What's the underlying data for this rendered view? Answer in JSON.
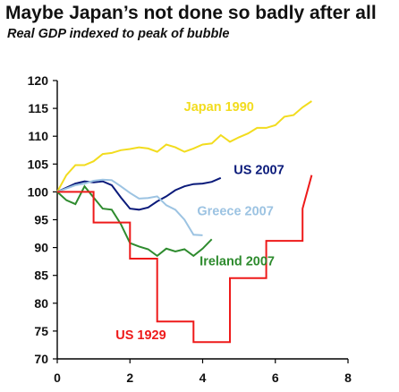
{
  "title": "Maybe Japan’s not done so badly after all",
  "subtitle": "Real GDP indexed to peak of bubble",
  "chart_data": {
    "type": "line",
    "title": "Maybe Japan’s not done so badly after all",
    "subtitle": "Real GDP indexed to peak of bubble",
    "xlabel": "",
    "ylabel": "",
    "xlim": [
      0,
      8
    ],
    "ylim": [
      70,
      120
    ],
    "xticks": [
      0,
      2,
      4,
      6,
      8
    ],
    "yticks": [
      70,
      75,
      80,
      85,
      90,
      95,
      100,
      105,
      110,
      115,
      120
    ],
    "grid": false,
    "series": [
      {
        "name": "Japan 1990",
        "color": "#f2dc1e",
        "step": false,
        "points": [
          [
            0,
            100
          ],
          [
            0.25,
            103
          ],
          [
            0.5,
            104.8
          ],
          [
            0.75,
            104.8
          ],
          [
            1.0,
            105.5
          ],
          [
            1.25,
            106.8
          ],
          [
            1.5,
            107
          ],
          [
            1.75,
            107.5
          ],
          [
            2.0,
            107.7
          ],
          [
            2.25,
            108
          ],
          [
            2.5,
            107.8
          ],
          [
            2.75,
            107.2
          ],
          [
            3.0,
            108.5
          ],
          [
            3.25,
            108
          ],
          [
            3.5,
            107.2
          ],
          [
            3.75,
            107.8
          ],
          [
            4.0,
            108.5
          ],
          [
            4.25,
            108.7
          ],
          [
            4.5,
            110.2
          ],
          [
            4.75,
            109
          ],
          [
            5.0,
            109.8
          ],
          [
            5.25,
            110.5
          ],
          [
            5.5,
            111.5
          ],
          [
            5.75,
            111.5
          ],
          [
            6.0,
            112
          ],
          [
            6.25,
            113.5
          ],
          [
            6.5,
            113.8
          ],
          [
            6.75,
            115.2
          ],
          [
            7.0,
            116.3
          ]
        ]
      },
      {
        "name": "US 2007",
        "color": "#0a1a7a",
        "step": false,
        "points": [
          [
            0,
            100
          ],
          [
            0.5,
            101.5
          ],
          [
            0.75,
            101.9
          ],
          [
            1.0,
            101.7
          ],
          [
            1.25,
            101.9
          ],
          [
            1.5,
            101.2
          ],
          [
            1.75,
            99
          ],
          [
            2.0,
            97
          ],
          [
            2.25,
            96.8
          ],
          [
            2.5,
            97.2
          ],
          [
            2.75,
            98.3
          ],
          [
            3.0,
            99.2
          ],
          [
            3.25,
            100.3
          ],
          [
            3.5,
            101
          ],
          [
            3.75,
            101.4
          ],
          [
            4.0,
            101.5
          ],
          [
            4.25,
            101.8
          ],
          [
            4.5,
            102.5
          ]
        ]
      },
      {
        "name": "Greece 2007",
        "color": "#9cc3e2",
        "step": false,
        "points": [
          [
            0,
            100
          ],
          [
            0.5,
            101.2
          ],
          [
            0.75,
            101.5
          ],
          [
            1.0,
            102
          ],
          [
            1.25,
            102.2
          ],
          [
            1.5,
            102.1
          ],
          [
            1.75,
            101
          ],
          [
            2.0,
            99.8
          ],
          [
            2.25,
            98.8
          ],
          [
            2.5,
            98.9
          ],
          [
            2.75,
            99.2
          ],
          [
            3.0,
            97.6
          ],
          [
            3.25,
            96.8
          ],
          [
            3.5,
            95
          ],
          [
            3.75,
            92.3
          ],
          [
            4.0,
            92.2
          ]
        ]
      },
      {
        "name": "Ireland 2007",
        "color": "#2e8b2e",
        "step": false,
        "points": [
          [
            0,
            100
          ],
          [
            0.25,
            98.5
          ],
          [
            0.5,
            97.8
          ],
          [
            0.75,
            101
          ],
          [
            1.0,
            99
          ],
          [
            1.25,
            97
          ],
          [
            1.5,
            96.8
          ],
          [
            1.75,
            94.2
          ],
          [
            2.0,
            90.8
          ],
          [
            2.25,
            90.2
          ],
          [
            2.5,
            89.7
          ],
          [
            2.75,
            88.5
          ],
          [
            3.0,
            89.8
          ],
          [
            3.25,
            89.3
          ],
          [
            3.5,
            89.7
          ],
          [
            3.75,
            88.5
          ],
          [
            4.0,
            89.8
          ],
          [
            4.25,
            91.5
          ]
        ]
      },
      {
        "name": "US 1929",
        "color": "#ee1a1a",
        "step": true,
        "points": [
          [
            0,
            100
          ],
          [
            1.0,
            100
          ],
          [
            1.0,
            94.5
          ],
          [
            2.0,
            94.5
          ],
          [
            2.0,
            88
          ],
          [
            2.75,
            88
          ],
          [
            2.75,
            76.7
          ],
          [
            3.75,
            76.7
          ],
          [
            3.75,
            73
          ],
          [
            4.75,
            73
          ],
          [
            4.75,
            84.5
          ],
          [
            5.75,
            84.5
          ],
          [
            5.75,
            91.2
          ],
          [
            6.75,
            91.2
          ],
          [
            6.75,
            97
          ],
          [
            7.0,
            103
          ]
        ]
      }
    ],
    "labels": [
      {
        "text": "Japan 1990",
        "color": "#f2dc1e",
        "x": 4.45,
        "y": 114.5,
        "anchor": "middle"
      },
      {
        "text": "US 2007",
        "color": "#0a1a7a",
        "x": 5.55,
        "y": 103.2,
        "anchor": "middle"
      },
      {
        "text": "Greece 2007",
        "color": "#9cc3e2",
        "x": 4.9,
        "y": 95.8,
        "anchor": "middle"
      },
      {
        "text": "Ireland 2007",
        "color": "#2e8b2e",
        "x": 4.95,
        "y": 86.8,
        "anchor": "middle"
      },
      {
        "text": "US 1929",
        "color": "#ee1a1a",
        "x": 2.3,
        "y": 73.5,
        "anchor": "middle"
      }
    ]
  }
}
